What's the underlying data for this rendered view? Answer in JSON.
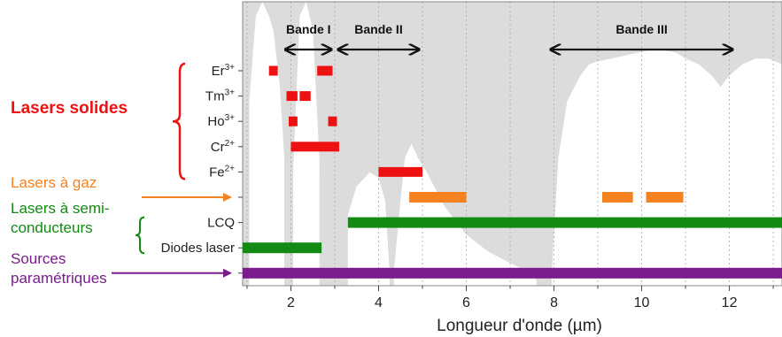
{
  "chart_data": {
    "type": "bar",
    "subtype": "horizontal-range",
    "xlabel": "Longueur d'onde (µm)",
    "xlim": [
      0.9,
      13.2
    ],
    "xticks": [
      2,
      4,
      6,
      8,
      10,
      12
    ],
    "grid": true,
    "colors": {
      "solid": "#ee1111",
      "gas": "#f58220",
      "semiconductor": "#138a13",
      "parametric": "#7a1c8c",
      "transparent": "#ffffff",
      "background": "#dcdcdc"
    },
    "rows": [
      {
        "label": "Er",
        "sup": "3+"
      },
      {
        "label": "Tm",
        "sup": "3+"
      },
      {
        "label": "Ho",
        "sup": "3+"
      },
      {
        "label": "Cr",
        "sup": "2+"
      },
      {
        "label": "Fe",
        "sup": "2+"
      },
      {
        "label": "",
        "sup": ""
      },
      {
        "label": "LCQ",
        "sup": ""
      },
      {
        "label": "Diodes laser",
        "sup": ""
      },
      {
        "label": "",
        "sup": ""
      }
    ],
    "bars": [
      {
        "row": 0,
        "x0": 1.5,
        "x1": 1.7,
        "category": "solid"
      },
      {
        "row": 0,
        "x0": 2.6,
        "x1": 2.95,
        "category": "solid"
      },
      {
        "row": 1,
        "x0": 1.9,
        "x1": 2.15,
        "category": "solid"
      },
      {
        "row": 1,
        "x0": 2.2,
        "x1": 2.45,
        "category": "solid"
      },
      {
        "row": 2,
        "x0": 1.95,
        "x1": 2.15,
        "category": "solid"
      },
      {
        "row": 2,
        "x0": 2.85,
        "x1": 3.05,
        "category": "solid"
      },
      {
        "row": 3,
        "x0": 2.0,
        "x1": 3.1,
        "category": "solid"
      },
      {
        "row": 4,
        "x0": 4.0,
        "x1": 5.0,
        "category": "solid"
      },
      {
        "row": 5,
        "x0": 4.7,
        "x1": 6.0,
        "category": "gas"
      },
      {
        "row": 5,
        "x0": 9.1,
        "x1": 9.8,
        "category": "gas"
      },
      {
        "row": 5,
        "x0": 10.1,
        "x1": 10.95,
        "category": "gas"
      },
      {
        "row": 6,
        "x0": 3.3,
        "x1": 13.2,
        "category": "semiconductor"
      },
      {
        "row": 7,
        "x0": 0.9,
        "x1": 2.7,
        "category": "semiconductor"
      },
      {
        "row": 8,
        "x0": 0.9,
        "x1": 13.2,
        "category": "parametric"
      }
    ],
    "bands": [
      {
        "label": "Bande I",
        "x0": 1.9,
        "x1": 2.9
      },
      {
        "label": "Bande II",
        "x0": 3.1,
        "x1": 4.9
      },
      {
        "label": "Bande III",
        "x0": 7.95,
        "x1": 12.05
      }
    ],
    "transmission_windows": [
      {
        "x": [
          1.05,
          1.2,
          1.35,
          1.5,
          1.6,
          1.75,
          1.85
        ],
        "top": [
          0.35,
          0.05,
          0.0,
          0.05,
          0.1,
          0.3,
          0.55
        ]
      },
      {
        "x": [
          2.05,
          2.2,
          2.35,
          2.5,
          2.65
        ],
        "top": [
          0.6,
          0.05,
          0.0,
          0.1,
          0.55
        ]
      },
      {
        "x": [
          3.3,
          3.5,
          3.8,
          4.0,
          4.15,
          4.25
        ],
        "top": [
          0.75,
          0.65,
          0.6,
          0.62,
          0.7,
          0.95
        ]
      },
      {
        "x": [
          4.35,
          4.5,
          4.6,
          4.75,
          4.9,
          5.1,
          5.5,
          6.0,
          6.5,
          7.0,
          7.4,
          7.6
        ],
        "top": [
          0.95,
          0.7,
          0.55,
          0.5,
          0.55,
          0.6,
          0.72,
          0.82,
          0.88,
          0.92,
          0.95,
          0.98
        ]
      },
      {
        "x": [
          7.95,
          8.1,
          8.3,
          8.6,
          8.8,
          9.0,
          9.3,
          9.6,
          9.9,
          10.2,
          10.5,
          10.8,
          11.0,
          11.3,
          11.6,
          11.8,
          12.0,
          12.3,
          12.6,
          12.9,
          13.2
        ],
        "top": [
          0.95,
          0.55,
          0.35,
          0.26,
          0.22,
          0.21,
          0.2,
          0.19,
          0.18,
          0.17,
          0.17,
          0.18,
          0.2,
          0.22,
          0.26,
          0.3,
          0.26,
          0.22,
          0.2,
          0.2,
          0.22
        ]
      }
    ],
    "groups": [
      {
        "label": "Lasers solides",
        "category": "solid",
        "rows": [
          0,
          4
        ],
        "bold": true
      },
      {
        "label": "Lasers à gaz",
        "category": "gas",
        "rows": [
          5,
          5
        ],
        "bold": false
      },
      {
        "label": "Lasers à semi-\nconducteurs",
        "category": "semiconductor",
        "rows": [
          6,
          7
        ],
        "bold": false
      },
      {
        "label": "Sources\nparamétriques",
        "category": "parametric",
        "rows": [
          8,
          8
        ],
        "bold": false
      }
    ]
  }
}
